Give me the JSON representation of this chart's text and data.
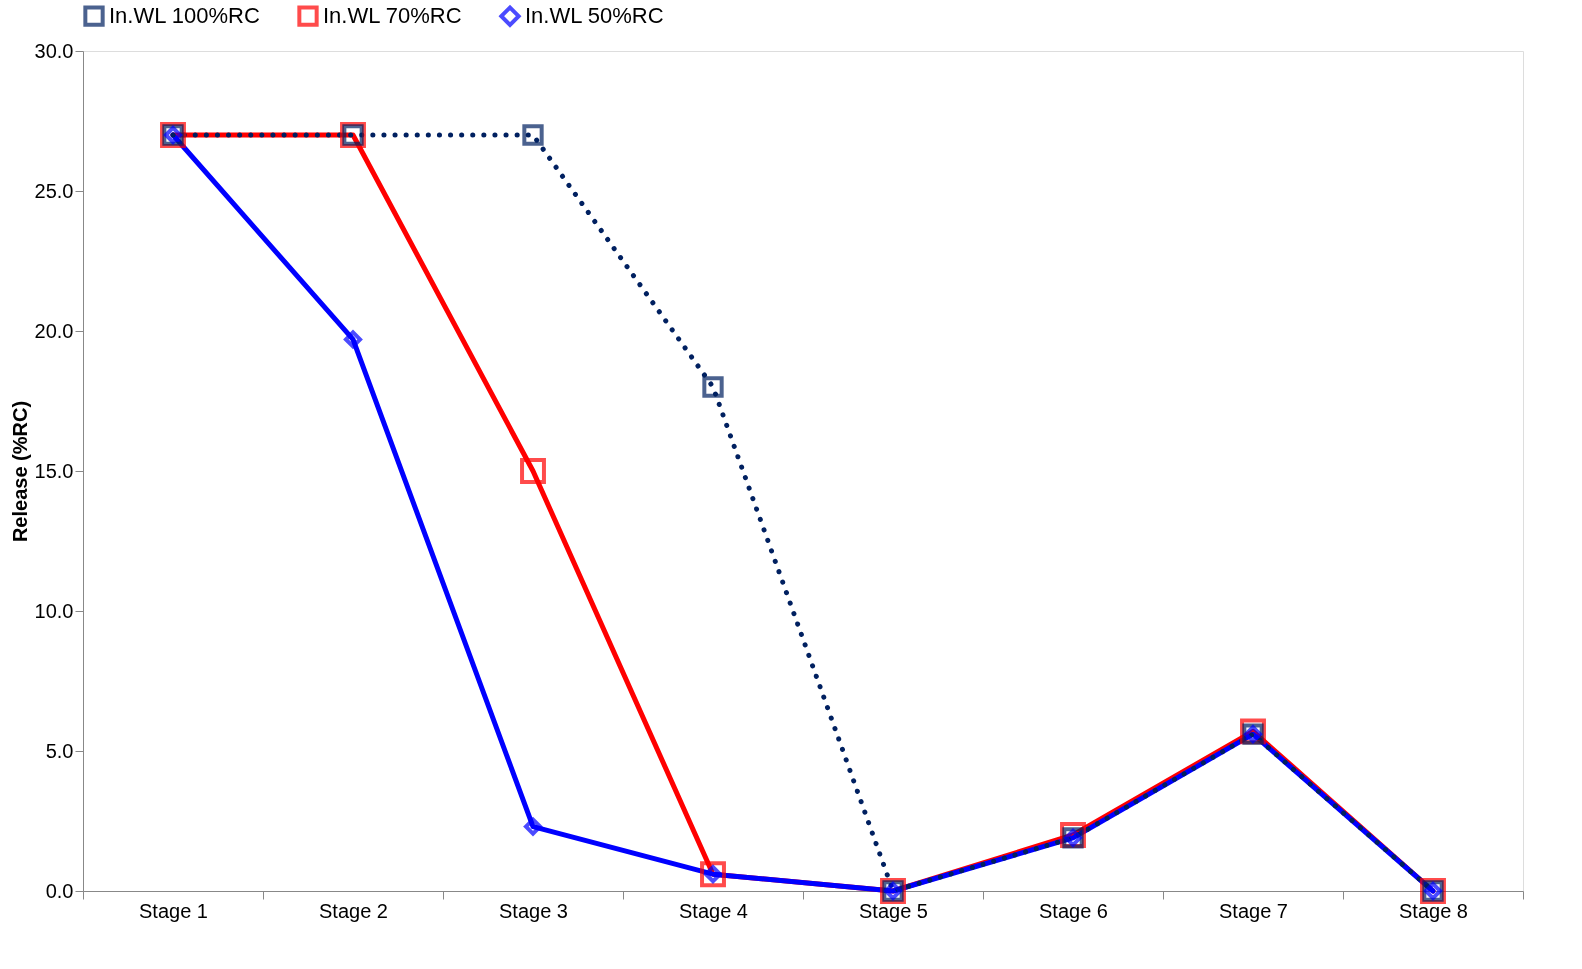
{
  "chart_data": {
    "type": "line",
    "ylabel": "Release (%RC)",
    "categories": [
      "Stage 1",
      "Stage 2",
      "Stage 3",
      "Stage 4",
      "Stage 5",
      "Stage 6",
      "Stage 7",
      "Stage 8"
    ],
    "series": [
      {
        "name": "In.WL 100%RC",
        "color": "#002060",
        "line_style": "dotted",
        "marker": "square",
        "values": [
          27.0,
          27.0,
          27.0,
          18.0,
          0.0,
          1.9,
          5.6,
          0.0
        ]
      },
      {
        "name": "In.WL 70%RC",
        "color": "#ff0000",
        "line_style": "solid",
        "marker": "square",
        "values": [
          27.0,
          27.0,
          15.0,
          0.6,
          0.0,
          2.0,
          5.7,
          0.0
        ]
      },
      {
        "name": "In.WL 50%RC",
        "color": "#0000ff",
        "line_style": "solid",
        "marker": "diamond",
        "values": [
          27.0,
          19.7,
          2.3,
          0.6,
          0.0,
          1.9,
          5.6,
          0.0
        ]
      }
    ],
    "ylim": [
      0,
      30
    ],
    "yticks": [
      {
        "value": 0,
        "label": "0.0"
      },
      {
        "value": 5,
        "label": "5.0"
      },
      {
        "value": 10,
        "label": "10.0"
      },
      {
        "value": 15,
        "label": "15.0"
      },
      {
        "value": 20,
        "label": "20.0"
      },
      {
        "value": 25,
        "label": "25.0"
      },
      {
        "value": 30,
        "label": "30.0"
      }
    ],
    "grid": false,
    "legend": "top"
  }
}
